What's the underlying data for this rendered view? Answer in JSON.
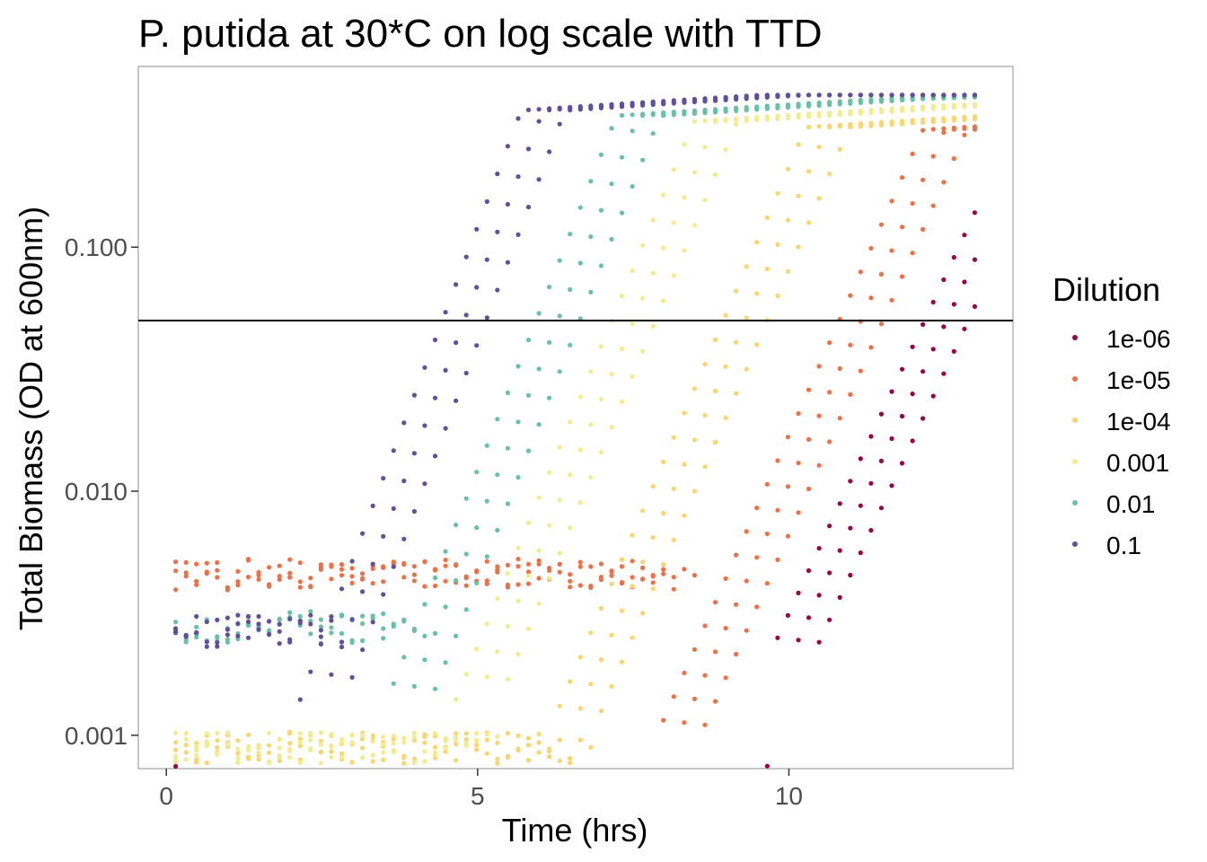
{
  "chart_data": {
    "type": "scatter",
    "title": "P. putida at 30*C on log scale with TTD",
    "xlabel": "Time (hrs)",
    "ylabel": "Total Biomass (OD at 600nm)",
    "xlim": [
      -0.45,
      13.6
    ],
    "ylim": [
      0.00073,
      0.55
    ],
    "y_scale": "log10",
    "x_ticks": [
      0,
      5,
      10
    ],
    "y_ticks": [
      0.001,
      0.01,
      0.1
    ],
    "x_tick_labels": [
      "0",
      "5",
      "10"
    ],
    "y_tick_labels": [
      "0.001",
      "0.010",
      "0.100"
    ],
    "grid": false,
    "legend_position": "right",
    "hline": 0.05,
    "legend_title": "Dilution",
    "series": [
      {
        "name": "1e-06",
        "color": "#9E0142",
        "lag_end": 10.1,
        "start": 0.0023,
        "rate": 0.55,
        "plateau": 0.31,
        "base": 0.00065,
        "noise_seed": 6
      },
      {
        "name": "1e-05",
        "color": "#F46D43",
        "lag_end": 8.3,
        "start": 0.0011,
        "rate": 0.58,
        "plateau": 0.3,
        "base": 0.0046,
        "noise_seed": 5
      },
      {
        "name": "1e-04",
        "color": "#FDD46A",
        "lag_end": 6.6,
        "start": 0.0012,
        "rate": 0.6,
        "plateau": 0.31,
        "base": 0.0009,
        "noise_seed": 4
      },
      {
        "name": "0.001",
        "color": "#F2EC8B",
        "lag_end": 5.0,
        "start": 0.0014,
        "rate": 0.62,
        "plateau": 0.33,
        "base": 0.0009,
        "noise_seed": 3
      },
      {
        "name": "0.01",
        "color": "#66C2A5",
        "lag_end": 3.9,
        "start": 0.0014,
        "rate": 0.65,
        "plateau": 0.35,
        "base": 0.0028,
        "noise_seed": 2
      },
      {
        "name": "0.1",
        "color": "#5E4FA2",
        "lag_end": 2.5,
        "start": 0.0014,
        "rate": 0.68,
        "plateau": 0.37,
        "base": 0.0027,
        "noise_seed": 1
      }
    ],
    "time_range": [
      0.15,
      13.0
    ],
    "time_step": 0.1667
  }
}
